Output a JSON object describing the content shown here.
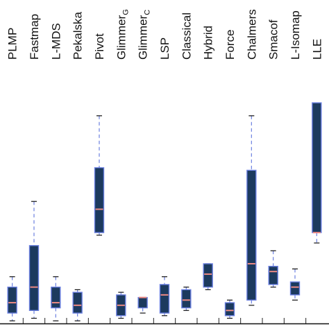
{
  "chart_data": {
    "type": "boxplot",
    "title": "",
    "xlabel": "",
    "ylabel": "",
    "ylim": [
      0,
      1
    ],
    "grid": false,
    "colors": {
      "box": "#1c3a5e",
      "box_edge": "#6a7fe0",
      "median": "#ee8a84",
      "cap": "#111111"
    },
    "categories": [
      {
        "label": "PLMP",
        "sub": ""
      },
      {
        "label": "Fastmap",
        "sub": ""
      },
      {
        "label": "L-MDS",
        "sub": ""
      },
      {
        "label": "Pekalska",
        "sub": ""
      },
      {
        "label": "Pivot",
        "sub": ""
      },
      {
        "label": "Glimmer",
        "sub": "G"
      },
      {
        "label": "Glimmer",
        "sub": "C"
      },
      {
        "label": "LSP",
        "sub": ""
      },
      {
        "label": "Classical",
        "sub": ""
      },
      {
        "label": "Hybrid",
        "sub": ""
      },
      {
        "label": "Force",
        "sub": ""
      },
      {
        "label": "Chalmers",
        "sub": ""
      },
      {
        "label": "Smacof",
        "sub": ""
      },
      {
        "label": "L-Isomap",
        "sub": ""
      },
      {
        "label": "LLE",
        "sub": ""
      }
    ],
    "series": [
      {
        "min": 0.01,
        "q1": 0.04,
        "median": 0.08,
        "q3": 0.14,
        "max": 0.18
      },
      {
        "min": 0.02,
        "q1": 0.05,
        "median": 0.14,
        "q3": 0.3,
        "max": 0.47
      },
      {
        "min": 0.01,
        "q1": 0.06,
        "median": 0.08,
        "q3": 0.14,
        "max": 0.18
      },
      {
        "min": 0.01,
        "q1": 0.04,
        "median": 0.07,
        "q3": 0.12,
        "max": 0.13
      },
      {
        "min": 0.34,
        "q1": 0.35,
        "median": 0.44,
        "q3": 0.6,
        "max": 0.8
      },
      {
        "min": 0.02,
        "q1": 0.03,
        "median": 0.07,
        "q3": 0.11,
        "max": 0.12
      },
      {
        "min": 0.04,
        "q1": 0.06,
        "median": 0.1,
        "q3": 0.1,
        "max": 0.1
      },
      {
        "min": 0.03,
        "q1": 0.04,
        "median": 0.11,
        "q3": 0.15,
        "max": 0.18
      },
      {
        "min": 0.05,
        "q1": 0.06,
        "median": 0.09,
        "q3": 0.13,
        "max": 0.14
      },
      {
        "min": 0.13,
        "q1": 0.14,
        "median": 0.19,
        "q3": 0.23,
        "max": 0.23
      },
      {
        "min": 0.02,
        "q1": 0.03,
        "median": 0.05,
        "q3": 0.08,
        "max": 0.09
      },
      {
        "min": 0.07,
        "q1": 0.09,
        "median": 0.23,
        "q3": 0.59,
        "max": 0.8
      },
      {
        "min": 0.14,
        "q1": 0.15,
        "median": 0.2,
        "q3": 0.22,
        "max": 0.28
      },
      {
        "min": 0.09,
        "q1": 0.11,
        "median": 0.14,
        "q3": 0.16,
        "max": 0.21
      },
      {
        "min": 0.31,
        "q1": 0.35,
        "median": 0.35,
        "q3": 0.85,
        "max": 0.85
      }
    ]
  }
}
